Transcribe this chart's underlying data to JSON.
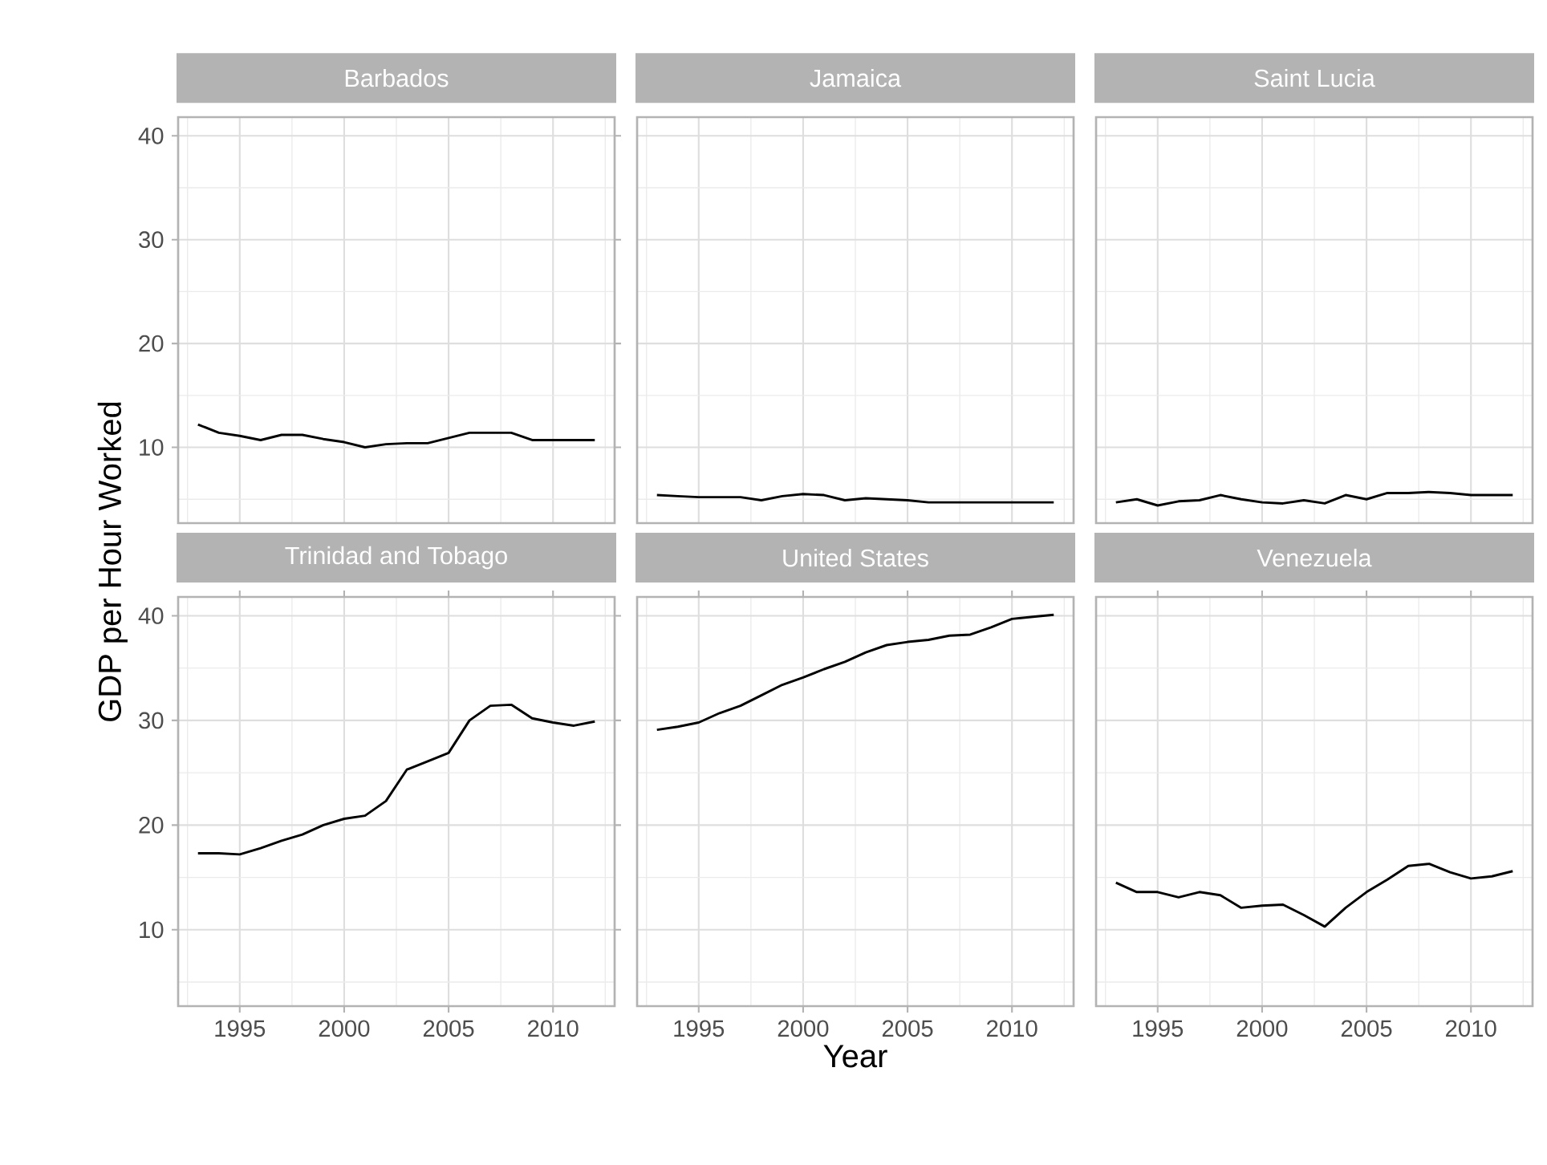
{
  "chart_data": [
    {
      "type": "line",
      "title": "Barbados",
      "ylabel": "GDP per Hour Worked",
      "color": "#000000",
      "grid": true,
      "tick_labels": "y",
      "xlim": [
        1992.05,
        2012.95
      ],
      "ylim": [
        2.7,
        41.8
      ],
      "xticks": [
        1995,
        2000,
        2005,
        2010
      ],
      "yticks": [
        10,
        20,
        30,
        40
      ],
      "x": [
        1993,
        1994,
        1995,
        1996,
        1997,
        1998,
        1999,
        2000,
        2001,
        2002,
        2003,
        2004,
        2005,
        2006,
        2007,
        2008,
        2009,
        2010,
        2011,
        2012
      ],
      "values": [
        12.2,
        11.4,
        11.1,
        10.7,
        11.2,
        11.2,
        10.8,
        10.5,
        10.0,
        10.3,
        10.4,
        10.4,
        10.9,
        11.4,
        11.4,
        11.4,
        10.7,
        10.7,
        10.7,
        10.7
      ]
    },
    {
      "type": "line",
      "title": "Jamaica",
      "color": "#000000",
      "grid": true,
      "tick_labels": false,
      "xlim": [
        1992.05,
        2012.95
      ],
      "ylim": [
        2.7,
        41.8
      ],
      "xticks": [
        1995,
        2000,
        2005,
        2010
      ],
      "yticks": [
        10,
        20,
        30,
        40
      ],
      "x": [
        1993,
        1994,
        1995,
        1996,
        1997,
        1998,
        1999,
        2000,
        2001,
        2002,
        2003,
        2004,
        2005,
        2006,
        2007,
        2008,
        2009,
        2010,
        2011,
        2012
      ],
      "values": [
        5.4,
        5.3,
        5.2,
        5.2,
        5.2,
        4.9,
        5.3,
        5.5,
        5.4,
        4.9,
        5.1,
        5.0,
        4.9,
        4.7,
        4.7,
        4.7,
        4.7,
        4.7,
        4.7,
        4.7
      ]
    },
    {
      "type": "line",
      "title": "Saint Lucia",
      "color": "#000000",
      "grid": true,
      "tick_labels": false,
      "xlim": [
        1992.05,
        2012.95
      ],
      "ylim": [
        2.7,
        41.8
      ],
      "xticks": [
        1995,
        2000,
        2005,
        2010
      ],
      "yticks": [
        10,
        20,
        30,
        40
      ],
      "x": [
        1993,
        1994,
        1995,
        1996,
        1997,
        1998,
        1999,
        2000,
        2001,
        2002,
        2003,
        2004,
        2005,
        2006,
        2007,
        2008,
        2009,
        2010,
        2011,
        2012
      ],
      "values": [
        4.7,
        5.0,
        4.4,
        4.8,
        4.9,
        5.4,
        5.0,
        4.7,
        4.6,
        4.9,
        4.6,
        5.4,
        5.0,
        5.6,
        5.6,
        5.7,
        5.6,
        5.4,
        5.4,
        5.4
      ]
    },
    {
      "type": "line",
      "title": "Trinidad and Tobago",
      "color": "#000000",
      "grid": true,
      "xlim": [
        1992.05,
        2012.95
      ],
      "ylim": [
        2.7,
        41.8
      ],
      "xticks": [
        1995,
        2000,
        2005,
        2010
      ],
      "yticks": [
        10,
        20,
        30,
        40
      ],
      "x": [
        1993,
        1994,
        1995,
        1996,
        1997,
        1998,
        1999,
        2000,
        2001,
        2002,
        2003,
        2004,
        2005,
        2006,
        2007,
        2008,
        2009,
        2010,
        2011,
        2012
      ],
      "values": [
        17.3,
        17.3,
        17.2,
        17.8,
        18.5,
        19.1,
        20.0,
        20.6,
        20.9,
        22.3,
        25.3,
        26.1,
        26.9,
        30.0,
        31.4,
        31.5,
        30.2,
        29.8,
        29.5,
        29.9
      ]
    },
    {
      "type": "line",
      "title": "United States",
      "xlabel": "Year",
      "color": "#000000",
      "grid": true,
      "tick_labels": "x",
      "xlim": [
        1992.05,
        2012.95
      ],
      "ylim": [
        2.7,
        41.8
      ],
      "xticks": [
        1995,
        2000,
        2005,
        2010
      ],
      "yticks": [
        10,
        20,
        30,
        40
      ],
      "x": [
        1993,
        1994,
        1995,
        1996,
        1997,
        1998,
        1999,
        2000,
        2001,
        2002,
        2003,
        2004,
        2005,
        2006,
        2007,
        2008,
        2009,
        2010,
        2011,
        2012
      ],
      "values": [
        29.1,
        29.4,
        29.8,
        30.7,
        31.4,
        32.4,
        33.4,
        34.1,
        34.9,
        35.6,
        36.5,
        37.2,
        37.5,
        37.7,
        38.1,
        38.2,
        38.9,
        39.7,
        39.9,
        40.1
      ]
    },
    {
      "type": "line",
      "title": "Venezuela",
      "color": "#000000",
      "grid": true,
      "tick_labels": "x",
      "xlim": [
        1992.05,
        2012.95
      ],
      "ylim": [
        2.7,
        41.8
      ],
      "xticks": [
        1995,
        2000,
        2005,
        2010
      ],
      "yticks": [
        10,
        20,
        30,
        40
      ],
      "x": [
        1993,
        1994,
        1995,
        1996,
        1997,
        1998,
        1999,
        2000,
        2001,
        2002,
        2003,
        2004,
        2005,
        2006,
        2007,
        2008,
        2009,
        2010,
        2011,
        2012
      ],
      "values": [
        14.5,
        13.6,
        13.6,
        13.1,
        13.6,
        13.3,
        12.1,
        12.3,
        12.4,
        11.4,
        10.3,
        12.1,
        13.6,
        14.8,
        16.1,
        16.3,
        15.5,
        14.9,
        15.1,
        15.6
      ]
    }
  ]
}
